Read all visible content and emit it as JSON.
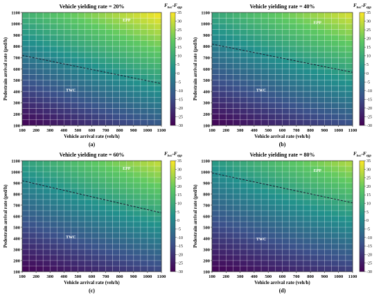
{
  "chart_data": [
    {
      "type": "heatmap",
      "panel": "a",
      "title": "Vehicle yielding rate = 20%",
      "caption": "(a)",
      "xlabel": "Vehicle arrival rate (veh/h)",
      "ylabel": "Pedestrain arrival rate (ped/h)",
      "x_ticks": [
        100,
        200,
        300,
        400,
        500,
        600,
        700,
        800,
        900,
        1000,
        1100
      ],
      "y_ticks": [
        100,
        200,
        300,
        400,
        500,
        600,
        700,
        800,
        900,
        1000,
        1100
      ],
      "xlim": [
        100,
        1100
      ],
      "ylim": [
        100,
        1100
      ],
      "grid_step": 50,
      "value_label": "F_twc-F_epp",
      "colorbar_ticks": [
        -30,
        -25,
        -20,
        -15,
        -10,
        -5,
        0,
        5,
        10,
        15,
        20,
        25,
        30,
        35
      ],
      "colorbar_range": [
        -30,
        35
      ],
      "colormap": [
        "#440154",
        "#3b528b",
        "#21918c",
        "#5ec962",
        "#fde725"
      ],
      "regions": [
        {
          "label": "EPP",
          "x": 850,
          "y": 1020
        },
        {
          "label": "TWC",
          "x": 450,
          "y": 400
        }
      ],
      "boundary": {
        "style": "dashed",
        "points": [
          [
            100,
            720
          ],
          [
            1100,
            470
          ]
        ]
      },
      "surface": {
        "corner_values": {
          "x100_y100": -30,
          "x1100_y100": -12,
          "x100_y1100": 12,
          "x1100_y1100": 35
        }
      }
    },
    {
      "type": "heatmap",
      "panel": "b",
      "title": "Vehicle yielding rate = 40%",
      "caption": "(b)",
      "xlabel": "Vehicle arrival rate (veh/h)",
      "ylabel": "Pedestrain arrival rate (ped/h)",
      "x_ticks": [
        100,
        200,
        300,
        400,
        500,
        600,
        700,
        800,
        900,
        1000,
        1100
      ],
      "y_ticks": [
        100,
        200,
        300,
        400,
        500,
        600,
        700,
        800,
        900,
        1000,
        1100
      ],
      "xlim": [
        100,
        1100
      ],
      "ylim": [
        100,
        1100
      ],
      "grid_step": 50,
      "value_label": "F_twc-F_epp",
      "colorbar_ticks": [
        -30,
        -25,
        -20,
        -15,
        -10,
        -5,
        0,
        5,
        10,
        15,
        20,
        25,
        30,
        35
      ],
      "colorbar_range": [
        -30,
        35
      ],
      "colormap": [
        "#440154",
        "#3b528b",
        "#21918c",
        "#5ec962",
        "#fde725"
      ],
      "regions": [
        {
          "label": "EPP",
          "x": 850,
          "y": 1000
        },
        {
          "label": "TWC",
          "x": 450,
          "y": 400
        }
      ],
      "boundary": {
        "style": "dashed",
        "points": [
          [
            100,
            820
          ],
          [
            1100,
            570
          ]
        ]
      },
      "surface": {
        "corner_values": {
          "x100_y100": -30,
          "x1100_y100": -14,
          "x100_y1100": 9,
          "x1100_y1100": 32
        }
      }
    },
    {
      "type": "heatmap",
      "panel": "c",
      "title": "Vehicle yielding rate = 60%",
      "caption": "(c)",
      "xlabel": "Vehicle arrival rate (veh/h)",
      "ylabel": "Pedestrain arrival rate (ped/h)",
      "x_ticks": [
        100,
        200,
        300,
        400,
        500,
        600,
        700,
        800,
        900,
        1000,
        1100
      ],
      "y_ticks": [
        100,
        200,
        300,
        400,
        500,
        600,
        700,
        800,
        900,
        1000,
        1100
      ],
      "xlim": [
        100,
        1100
      ],
      "ylim": [
        100,
        1100
      ],
      "grid_step": 50,
      "value_label": "F_twc-F_epp",
      "colorbar_ticks": [
        -30,
        -25,
        -20,
        -15,
        -10,
        -5,
        0,
        5,
        10,
        15,
        20,
        25,
        30,
        35
      ],
      "colorbar_range": [
        -30,
        35
      ],
      "colormap": [
        "#440154",
        "#3b528b",
        "#21918c",
        "#5ec962",
        "#fde725"
      ],
      "regions": [
        {
          "label": "EPP",
          "x": 850,
          "y": 1020
        },
        {
          "label": "TWC",
          "x": 450,
          "y": 400
        }
      ],
      "boundary": {
        "style": "dashed",
        "points": [
          [
            100,
            920
          ],
          [
            1100,
            630
          ]
        ]
      },
      "surface": {
        "corner_values": {
          "x100_y100": -30,
          "x1100_y100": -16,
          "x100_y1100": 7,
          "x1100_y1100": 30
        }
      }
    },
    {
      "type": "heatmap",
      "panel": "d",
      "title": "Vehicle yielding rate = 80%",
      "caption": "(d)",
      "xlabel": "Vehicle arrival rate (veh/h)",
      "ylabel": "Pedestrain arrival rate (ped/h)",
      "x_ticks": [
        100,
        200,
        300,
        400,
        500,
        600,
        700,
        800,
        900,
        1000,
        1100
      ],
      "y_ticks": [
        100,
        200,
        300,
        400,
        500,
        600,
        700,
        800,
        900,
        1000,
        1100
      ],
      "xlim": [
        100,
        1100
      ],
      "ylim": [
        100,
        1100
      ],
      "grid_step": 50,
      "value_label": "F_twc-F_epp",
      "colorbar_ticks": [
        -30,
        -25,
        -20,
        -15,
        -10,
        -5,
        0,
        5,
        10,
        15,
        20,
        25,
        30,
        35
      ],
      "colorbar_range": [
        -30,
        35
      ],
      "colormap": [
        "#440154",
        "#3b528b",
        "#21918c",
        "#5ec962",
        "#fde725"
      ],
      "regions": [
        {
          "label": "EPP",
          "x": 850,
          "y": 1000
        },
        {
          "label": "TWC",
          "x": 450,
          "y": 380
        }
      ],
      "boundary": {
        "style": "dashed",
        "points": [
          [
            100,
            990
          ],
          [
            1100,
            720
          ]
        ]
      },
      "surface": {
        "corner_values": {
          "x100_y100": -30,
          "x1100_y100": -18,
          "x100_y1100": 5,
          "x1100_y1100": 28
        }
      }
    }
  ]
}
